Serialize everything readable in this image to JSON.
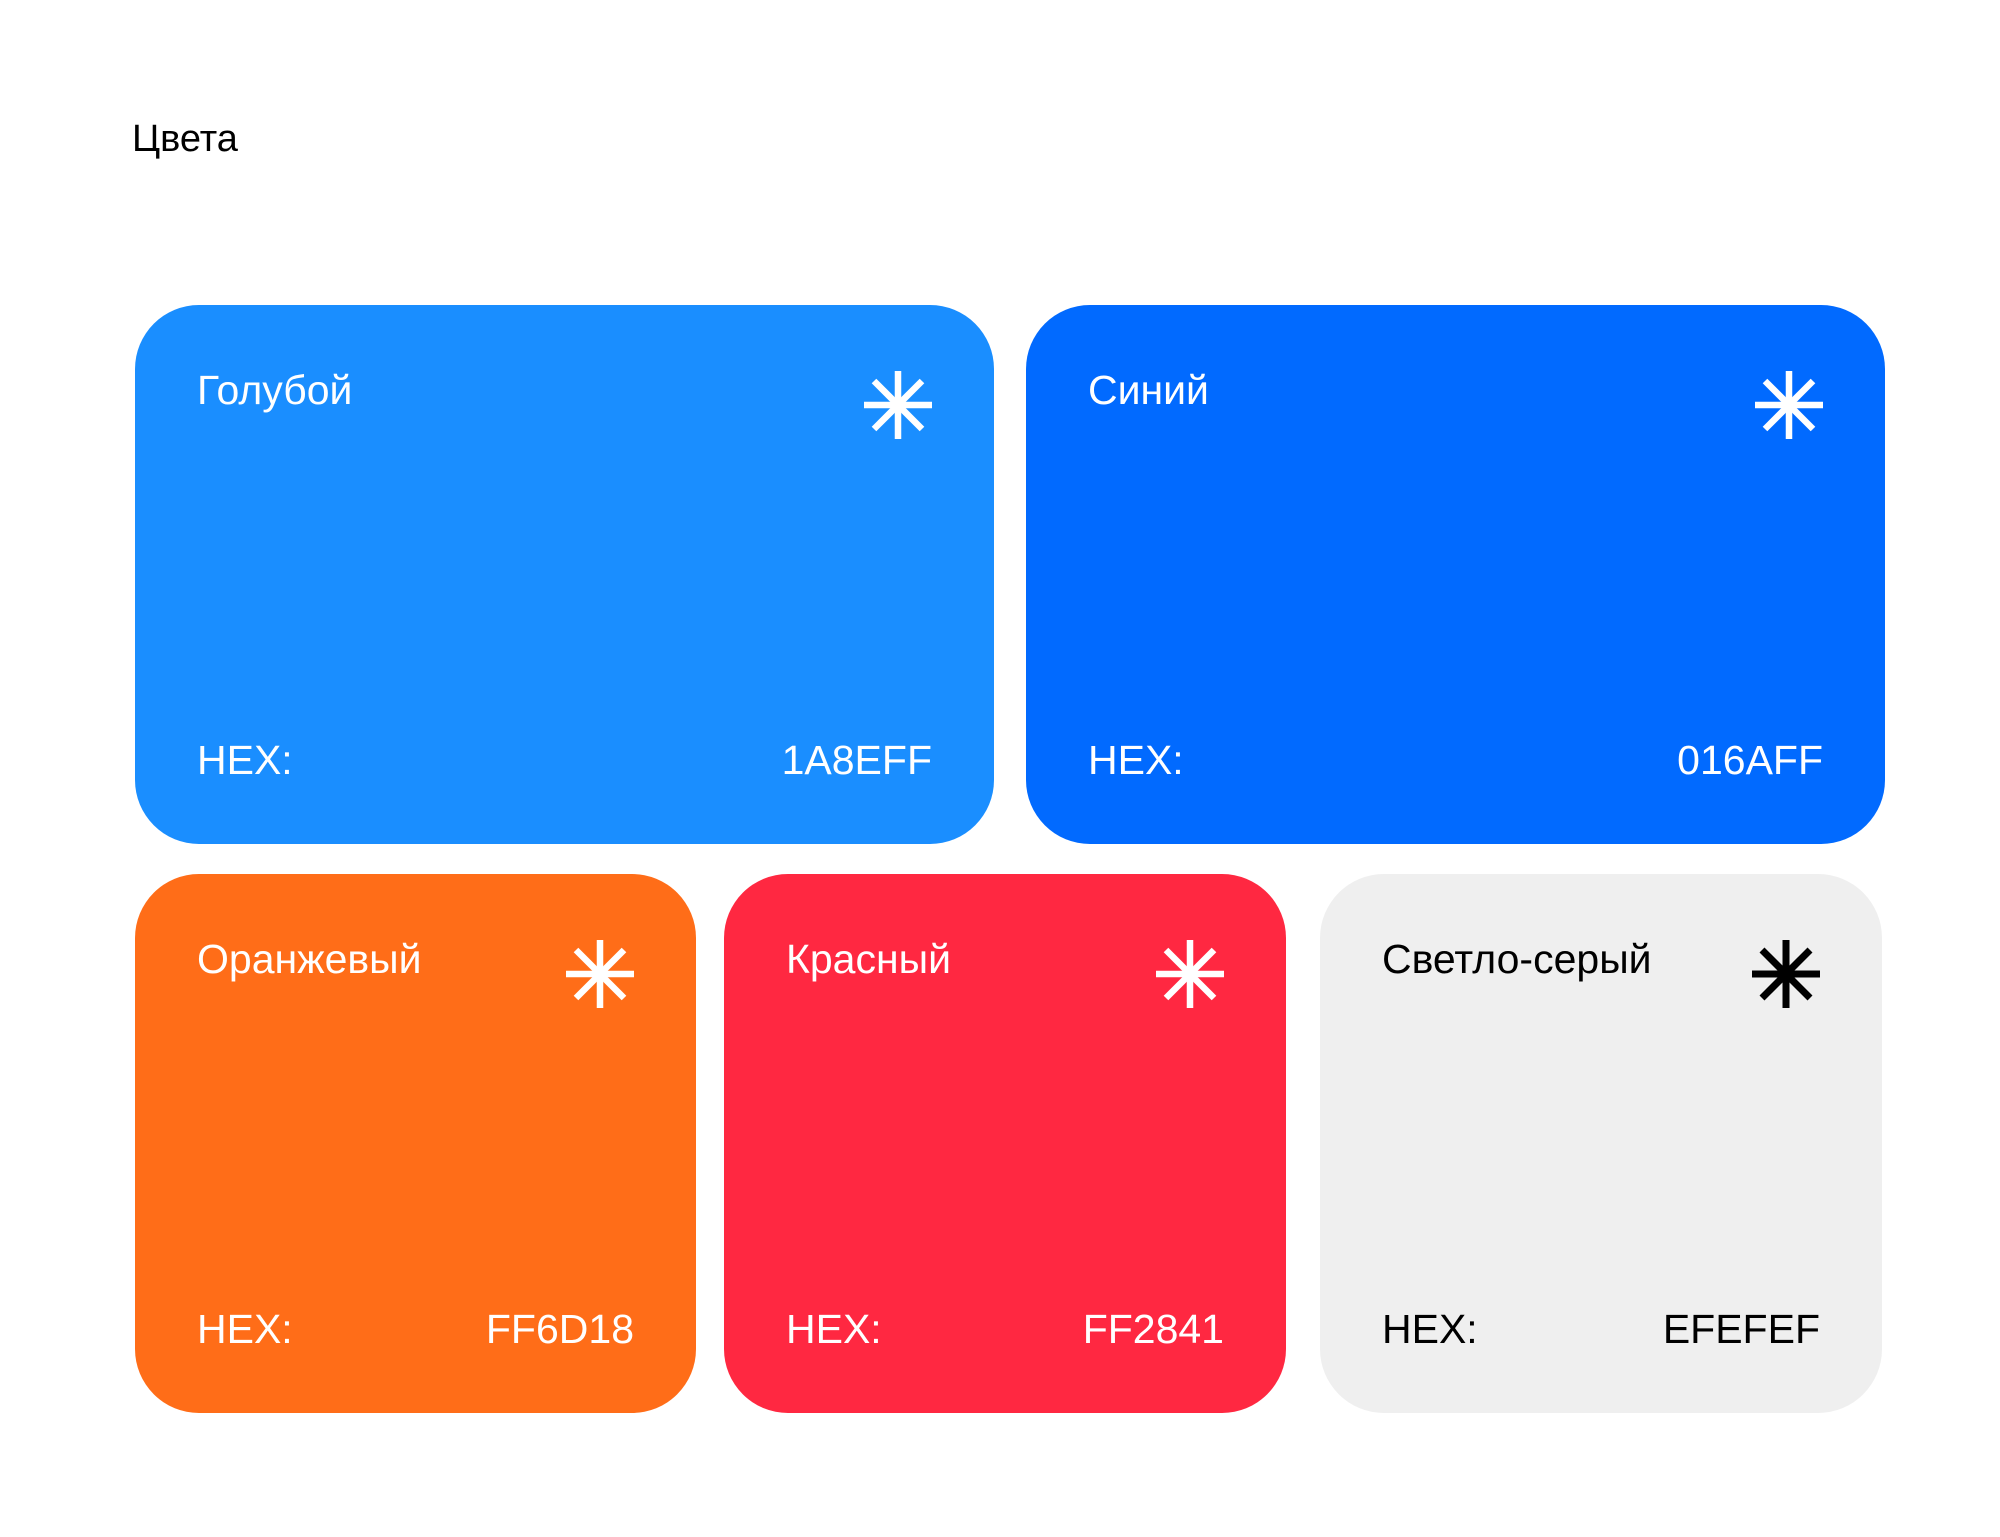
{
  "title": "Цвета",
  "hex_label": "HEX:",
  "cards": [
    {
      "name": "Голубой",
      "hex": "1A8EFF",
      "color": "#1A8EFF",
      "text_color": "#FFFFFF"
    },
    {
      "name": "Синий",
      "hex": "016AFF",
      "color": "#016AFF",
      "text_color": "#FFFFFF"
    },
    {
      "name": "Оранжевый",
      "hex": "FF6D18",
      "color": "#FF6D18",
      "text_color": "#FFFFFF"
    },
    {
      "name": "Красный",
      "hex": "FF2841",
      "color": "#FF2841",
      "text_color": "#FFFFFF"
    },
    {
      "name": "Светло-серый",
      "hex": "EFEFEF",
      "color": "#EFEFEF",
      "text_color": "#000000"
    }
  ],
  "icon": "asterisk-icon"
}
